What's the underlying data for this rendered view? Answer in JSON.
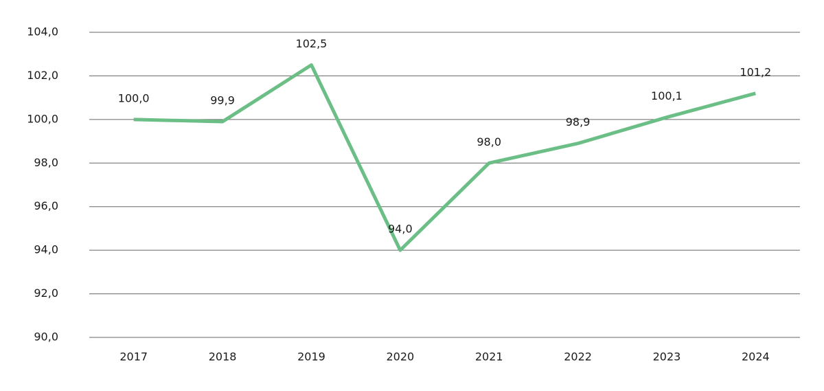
{
  "chart_data": {
    "type": "line",
    "categories": [
      "2017",
      "2018",
      "2019",
      "2020",
      "2021",
      "2022",
      "2023",
      "2024"
    ],
    "values": [
      100.0,
      99.9,
      102.5,
      94.0,
      98.0,
      98.9,
      100.1,
      101.2
    ],
    "value_labels": [
      "100,0",
      "99,9",
      "102,5",
      "94,0",
      "98,0",
      "98,9",
      "100,1",
      "101,2"
    ],
    "color": "#6bbf86",
    "ylim": [
      90,
      104
    ],
    "yticks": [
      {
        "value": 90,
        "label": "90,0"
      },
      {
        "value": 92,
        "label": "92,0"
      },
      {
        "value": 94,
        "label": "94,0"
      },
      {
        "value": 96,
        "label": "96,0"
      },
      {
        "value": 98,
        "label": "98,0"
      },
      {
        "value": 100,
        "label": "100,0"
      },
      {
        "value": 102,
        "label": "102,0"
      },
      {
        "value": 104,
        "label": "104,0"
      }
    ],
    "grid": true
  }
}
